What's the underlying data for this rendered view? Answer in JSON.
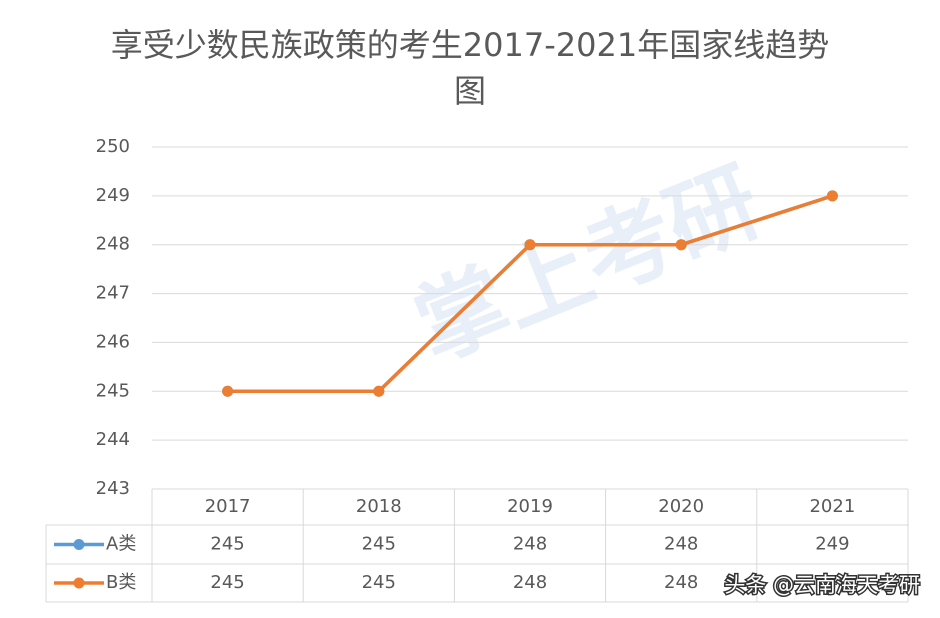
{
  "chart_data": {
    "type": "line",
    "title": "享受少数民族政策的考生2017-2021年国家线趋势图",
    "categories": [
      "2017",
      "2018",
      "2019",
      "2020",
      "2021"
    ],
    "series": [
      {
        "name": "A类",
        "color": "#5b9bd5",
        "values": [
          245,
          245,
          248,
          248,
          249
        ]
      },
      {
        "name": "B类",
        "color": "#ed7d31",
        "values": [
          245,
          245,
          248,
          248,
          249
        ]
      }
    ],
    "ylim": [
      243,
      250
    ],
    "yticks": [
      243,
      244,
      245,
      246,
      247,
      248,
      249,
      250
    ],
    "grid": true,
    "data_table": true,
    "watermark": "头条 @云南海天考研",
    "watermark_logo": "掌上考研"
  }
}
